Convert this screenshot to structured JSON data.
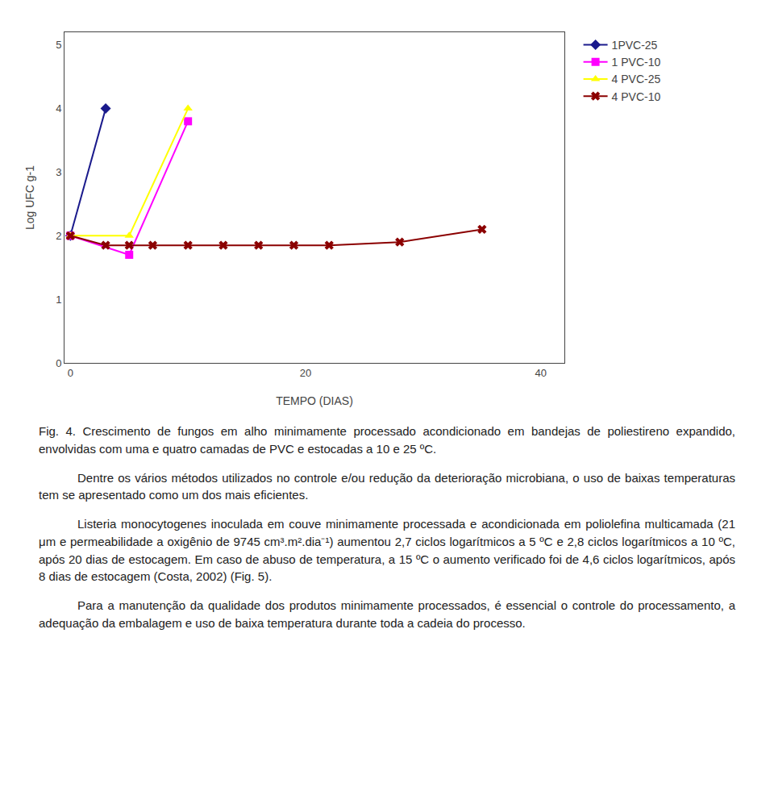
{
  "chart_data": {
    "type": "line",
    "xlabel": "TEMPO (DIAS)",
    "ylabel": "Log UFC g-1",
    "series": [
      {
        "name": "1PVC-25",
        "color": "#1a1a8c",
        "marker": "diamond",
        "x": [
          0,
          3
        ],
        "values": [
          2.0,
          4.0
        ]
      },
      {
        "name": "1 PVC-10",
        "color": "#ff00ff",
        "marker": "square",
        "x": [
          0,
          5,
          10
        ],
        "values": [
          2.0,
          1.7,
          3.8
        ]
      },
      {
        "name": "4 PVC-25",
        "color": "#ffff00",
        "marker": "triangle-up",
        "x": [
          0,
          5,
          10
        ],
        "values": [
          2.0,
          2.0,
          4.0
        ]
      },
      {
        "name": "4 PVC-10",
        "color": "#8b0000",
        "marker": "x",
        "x": [
          0,
          3,
          5,
          7,
          10,
          13,
          16,
          19,
          22,
          28,
          35
        ],
        "values": [
          2.0,
          1.85,
          1.85,
          1.85,
          1.85,
          1.85,
          1.85,
          1.85,
          1.85,
          1.9,
          2.1
        ]
      }
    ],
    "xlim": [
      -0.5,
      42
    ],
    "xticks": [
      0,
      20,
      40
    ],
    "ylim": [
      0,
      5.2
    ],
    "yticks": [
      0,
      1,
      2,
      3,
      4,
      5
    ],
    "grid": false,
    "legend": "right",
    "annotations": [
      "Fig. 4. Crescimento de fungos em alho minimamente processado acondicionado em bandejas de poliestireno expandido, envolvidas com uma e quatro camadas de PVC e estocadas a 10 e 25 ºC.",
      "Dentre os vários métodos utilizados no controle e/ou redução da deterioração microbiana, o uso de baixas temperaturas tem se apresentado como um dos mais eficientes.",
      "Listeria monocytogenes inoculada em couve minimamente processada e acondicionada em poliolefina multicamada (21 μm e permeabilidade a oxigênio de 9745 cm³.m².dia⁻¹) aumentou 2,7 ciclos logarítmicos a 5 ºC e 2,8 ciclos logarítmicos a 10 ºC, após 20 dias de estocagem. Em caso de abuso de temperatura, a 15 ºC o aumento verificado foi de 4,6 ciclos logarítmicos, após 8 dias de estocagem (Costa, 2002) (Fig. 5).",
      "Para a manutenção da qualidade dos produtos minimamente processados, é essencial o controle do processamento, a adequação da embalagem e uso de baixa temperatura durante toda a cadeia do processo."
    ]
  }
}
